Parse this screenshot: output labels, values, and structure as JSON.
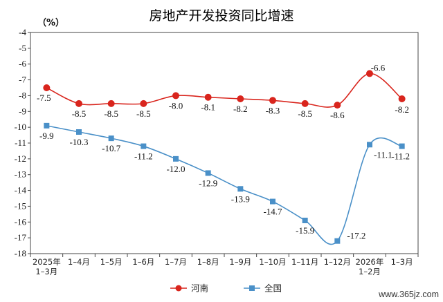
{
  "chart_data": {
    "type": "line",
    "title": "房地产开发投资同比增速",
    "ylabel": "（%）",
    "ylim": [
      -18,
      -4
    ],
    "yticks": [
      -4,
      -5,
      -6,
      -7,
      -8,
      -9,
      -10,
      -11,
      -12,
      -13,
      -14,
      -15,
      -16,
      -17,
      -18
    ],
    "grid": false,
    "legend_position": "bottom-center",
    "categories": [
      "2025年\n1–3月",
      "1–4月",
      "1–5月",
      "1–6月",
      "1–7月",
      "1–8月",
      "1–9月",
      "1–10月",
      "1–11月",
      "1–12月",
      "2026年\n1–2月",
      "1–3月"
    ],
    "series": [
      {
        "name": "河南",
        "color": "#d9251d",
        "marker": "circle",
        "values": [
          -7.5,
          -8.5,
          -8.5,
          -8.5,
          -8.0,
          -8.1,
          -8.2,
          -8.3,
          -8.5,
          -8.6,
          -6.6,
          -8.2
        ],
        "labels": [
          "-7.5",
          "-8.5",
          "-8.5",
          "-8.5",
          "-8.0",
          "-8.1",
          "-8.2",
          "-8.3",
          "-8.5",
          "-8.6",
          "-6.6",
          "-8.2"
        ]
      },
      {
        "name": "全国",
        "color": "#4a90c8",
        "marker": "square",
        "values": [
          -9.9,
          -10.3,
          -10.7,
          -11.2,
          -12.0,
          -12.9,
          -13.9,
          -14.7,
          -15.9,
          -17.2,
          -11.1,
          -11.2
        ],
        "labels": [
          "-9.9",
          "-10.3",
          "-10.7",
          "-11.2",
          "-12.0",
          "-12.9",
          "-13.9",
          "-14.7",
          "-15.9",
          "-17.2",
          "-11.1",
          "-11.2"
        ]
      }
    ]
  },
  "watermark": "www.365jz.com"
}
